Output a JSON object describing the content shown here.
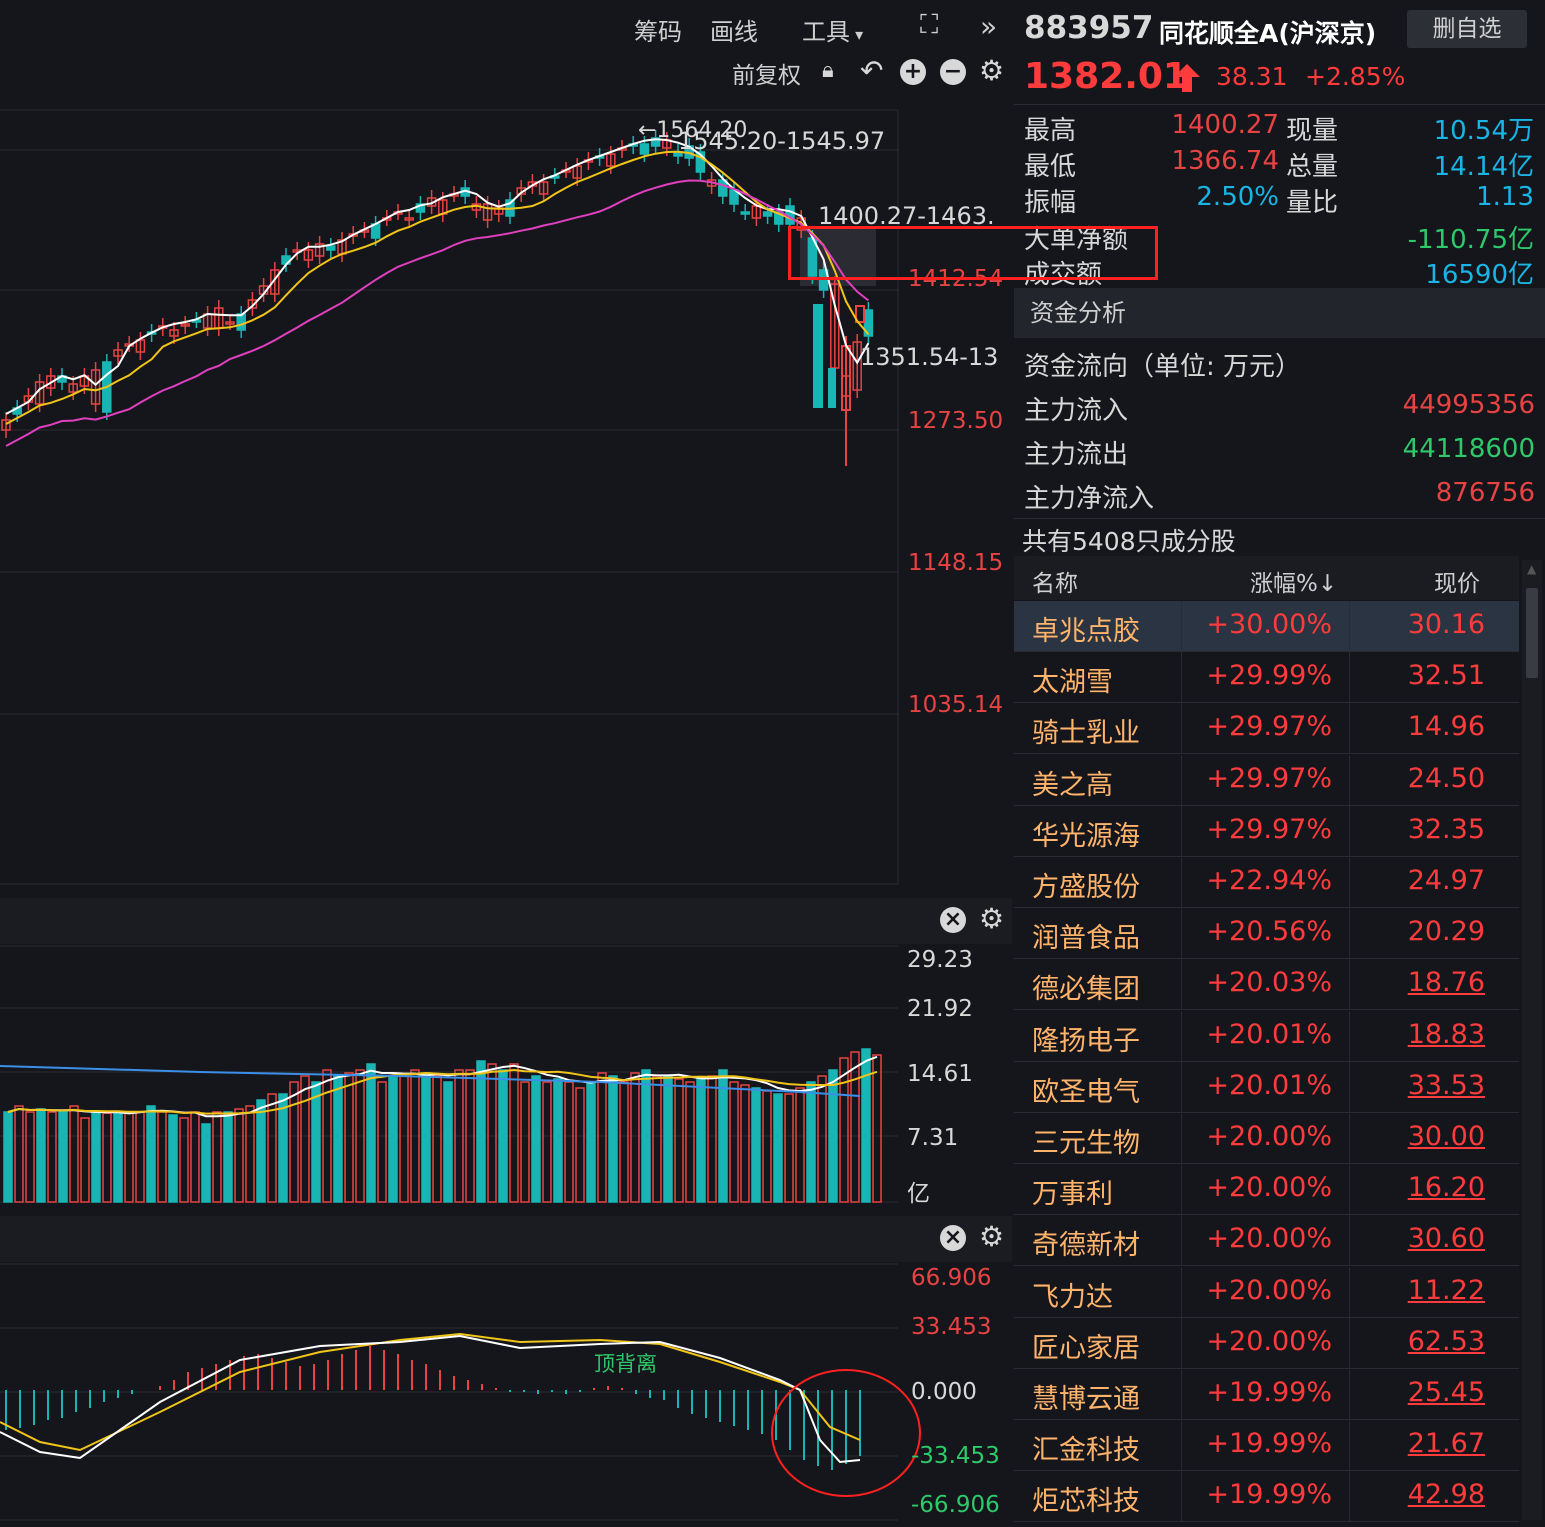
{
  "toolbar": {
    "chips_label": "筹码",
    "draw_label": "画线",
    "tools_label": "工具",
    "adjust_label": "前复权"
  },
  "price_axis": [
    "1412.54",
    "1273.50",
    "1148.15",
    "1035.14"
  ],
  "annotations": {
    "high_mark": "←1564.20",
    "range_top": "1545.20-1545.97",
    "range_mid": "1400.27-1463.",
    "range_low": "1351.54-13"
  },
  "volume_axis": [
    "29.23",
    "21.92",
    "14.61",
    "7.31",
    "亿"
  ],
  "macd_axis": {
    "top": "66.906",
    "upper": "33.453",
    "zero": "0.000",
    "lower": "-33.453",
    "bottom": "-66.906"
  },
  "macd_label": "顶背离",
  "header": {
    "code": "883957",
    "name": "同花顺全A(沪深京)",
    "delete_label": "删自选",
    "price": "1382.01",
    "change": "38.31",
    "change_pct": "+2.85%"
  },
  "quote": {
    "high_label": "最高",
    "high": "1400.27",
    "low_label": "最低",
    "low": "1366.74",
    "amp_label": "振幅",
    "amp": "2.50%",
    "cur_vol_label": "现量",
    "cur_vol": "10.54万",
    "total_vol_label": "总量",
    "total_vol": "14.14亿",
    "vol_ratio_label": "量比",
    "vol_ratio": "1.13",
    "big_net_label": "大单净额",
    "big_net": "-110.75亿",
    "turnover_label": "成交额",
    "turnover": "16590亿"
  },
  "funds": {
    "section_label": "资金分析",
    "flow_title": "资金流向（单位: 万元）",
    "in_label": "主力流入",
    "in": "44995356",
    "out_label": "主力流出",
    "out": "44118600",
    "net_label": "主力净流入",
    "net": "876756"
  },
  "constituents": {
    "title": "共有5408只成分股",
    "col_name": "名称",
    "col_pct": "涨幅%↓",
    "col_price": "现价",
    "rows": [
      {
        "name": "卓兆点胶",
        "pct": "+30.00%",
        "price": "30.16"
      },
      {
        "name": "太湖雪",
        "pct": "+29.99%",
        "price": "32.51"
      },
      {
        "name": "骑士乳业",
        "pct": "+29.97%",
        "price": "14.96"
      },
      {
        "name": "美之高",
        "pct": "+29.97%",
        "price": "24.50"
      },
      {
        "name": "华光源海",
        "pct": "+29.97%",
        "price": "32.35"
      },
      {
        "name": "方盛股份",
        "pct": "+22.94%",
        "price": "24.97"
      },
      {
        "name": "润普食品",
        "pct": "+20.56%",
        "price": "20.29"
      },
      {
        "name": "德必集团",
        "pct": "+20.03%",
        "price": "18.76"
      },
      {
        "name": "隆扬电子",
        "pct": "+20.01%",
        "price": "18.83"
      },
      {
        "name": "欧圣电气",
        "pct": "+20.01%",
        "price": "33.53"
      },
      {
        "name": "三元生物",
        "pct": "+20.00%",
        "price": "30.00"
      },
      {
        "name": "万事利",
        "pct": "+20.00%",
        "price": "16.20"
      },
      {
        "name": "奇德新材",
        "pct": "+20.00%",
        "price": "30.60"
      },
      {
        "name": "飞力达",
        "pct": "+20.00%",
        "price": "11.22"
      },
      {
        "name": "匠心家居",
        "pct": "+20.00%",
        "price": "62.53"
      },
      {
        "name": "慧博云通",
        "pct": "+19.99%",
        "price": "25.45"
      },
      {
        "name": "汇金科技",
        "pct": "+19.99%",
        "price": "21.67"
      },
      {
        "name": "炬芯科技",
        "pct": "+19.99%",
        "price": "42.98"
      }
    ]
  },
  "colors": {
    "up": "#e84343",
    "down": "#19b5b5",
    "ma5": "#ffffff",
    "ma10": "#f0c419",
    "ma20": "#e040c0",
    "highlight": "#ff2020"
  }
}
